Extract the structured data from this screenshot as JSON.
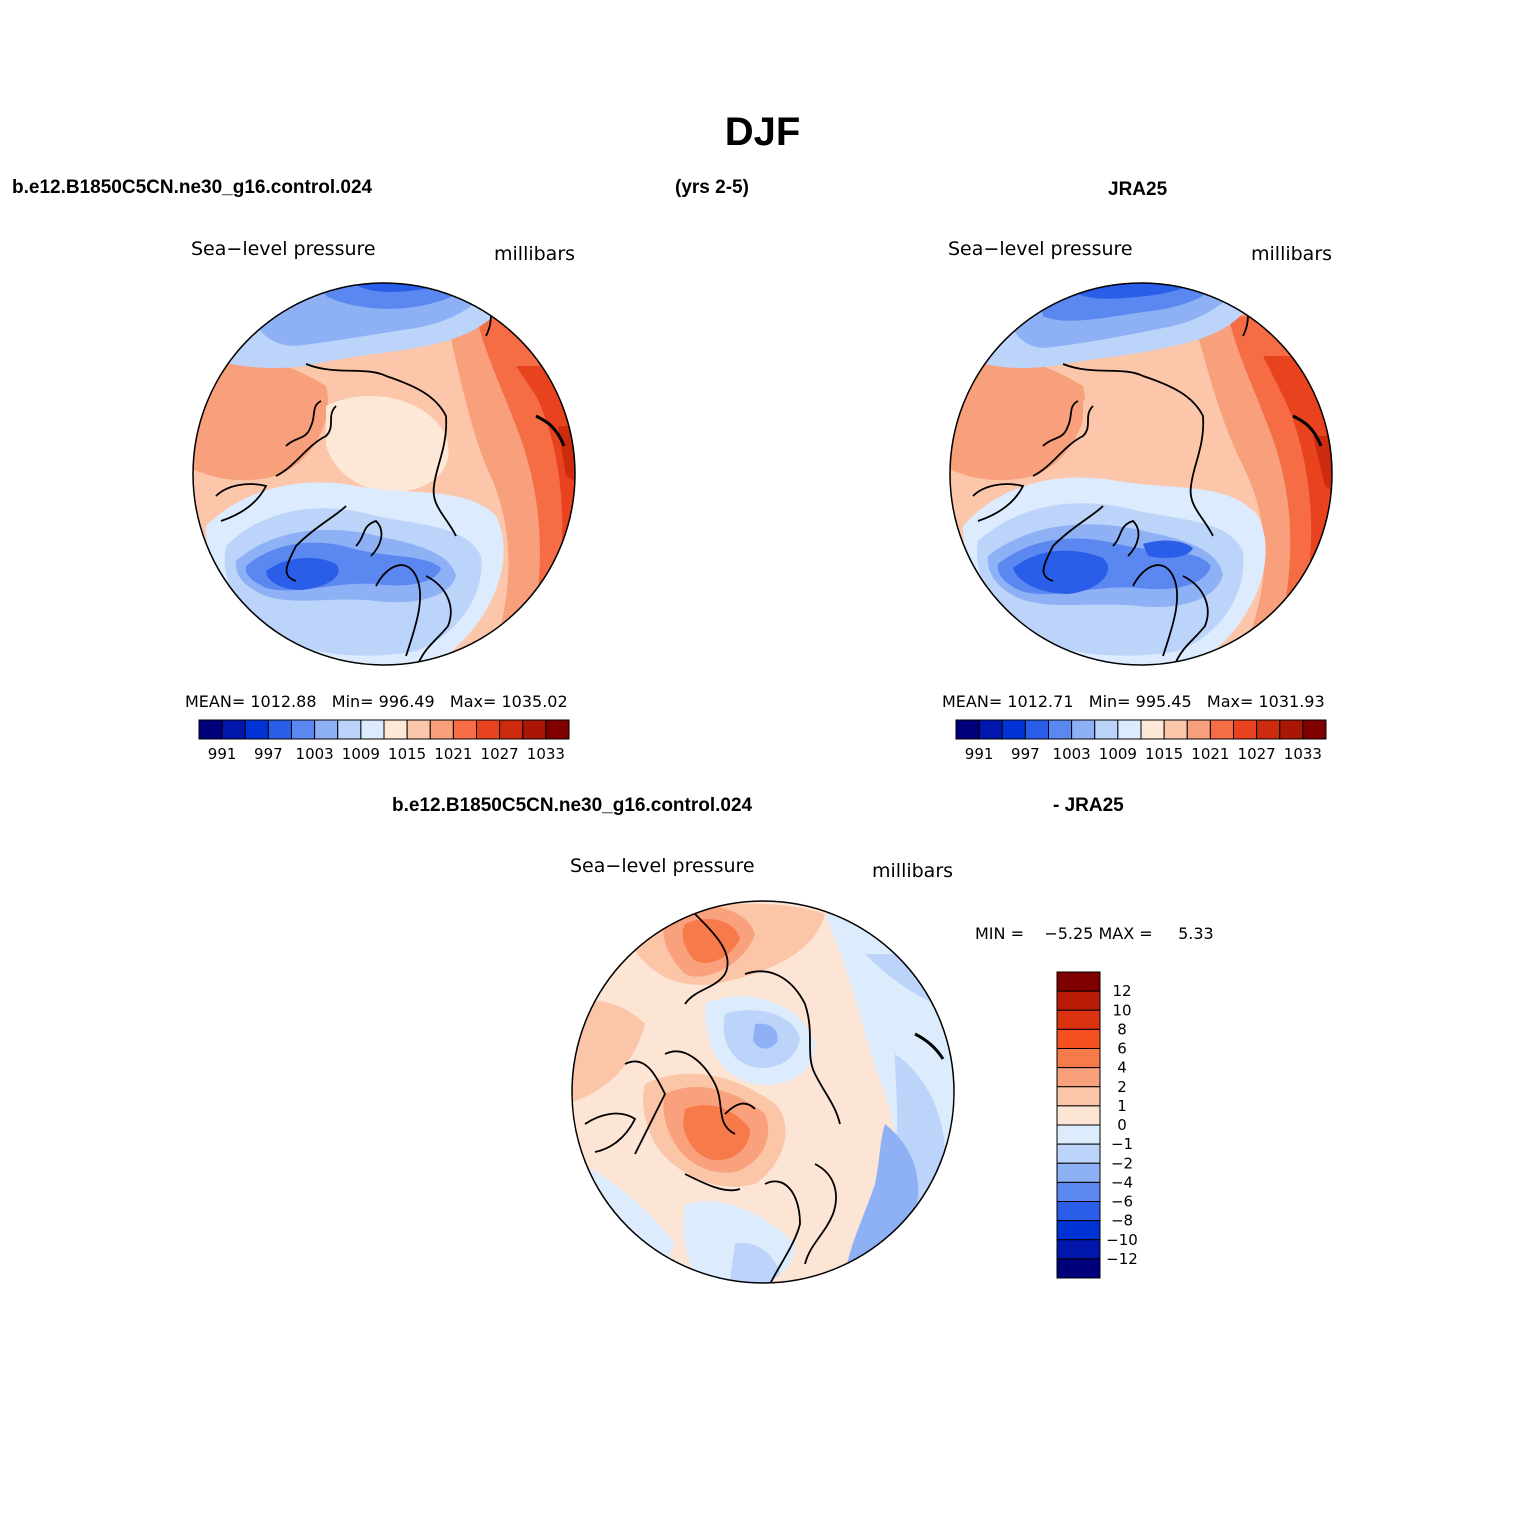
{
  "page": {
    "title": "DJF",
    "case_name": "b.e12.B1850C5CN.ne30_g16.control.024",
    "years": "(yrs 2-5)",
    "obs_name": "JRA25",
    "diff_case_name": "b.e12.B1850C5CN.ne30_g16.control.024",
    "diff_obs_name": "- JRA25"
  },
  "panels": {
    "model": {
      "variable": "Sea−level pressure",
      "units": "millibars",
      "stats": {
        "mean_label": "MEAN=",
        "mean": "1012.88",
        "min_label": "Min=",
        "min": "996.49",
        "max_label": "Max=",
        "max": "1035.02"
      }
    },
    "obs": {
      "variable": "Sea−level pressure",
      "units": "millibars",
      "stats": {
        "mean_label": "MEAN=",
        "mean": "1012.71",
        "min_label": "Min=",
        "min": "995.45",
        "max_label": "Max=",
        "max": "1031.93"
      }
    },
    "diff": {
      "variable": "Sea−level pressure",
      "units": "millibars",
      "stats": {
        "min_label": "MIN =",
        "min": "−5.25",
        "max_label": "MAX =",
        "max": "5.33"
      }
    }
  },
  "colorbars": {
    "abs": {
      "labels": [
        "991",
        "997",
        "1003",
        "1009",
        "1015",
        "1021",
        "1027",
        "1033"
      ],
      "colors": [
        "#00007a",
        "#0016ad",
        "#0033d6",
        "#2a5ee8",
        "#5a88f0",
        "#8eb0f5",
        "#bcd3fa",
        "#dcebfd",
        "#fde8d8",
        "#fbc6aa",
        "#f89f7c",
        "#f56c45",
        "#e8431e",
        "#cc2b0e",
        "#a91606",
        "#800000"
      ]
    },
    "diff": {
      "labels": [
        "12",
        "10",
        "8",
        "6",
        "4",
        "2",
        "1",
        "0",
        "−1",
        "−2",
        "−4",
        "−6",
        "−8",
        "−10",
        "−12"
      ],
      "colors": [
        "#800000",
        "#b81c06",
        "#db3210",
        "#f5501f",
        "#f77a4a",
        "#f9a07c",
        "#fbc5a8",
        "#fde5d6",
        "#ddecfd",
        "#bcd3fa",
        "#8eb0f5",
        "#5a88f0",
        "#2a5ee8",
        "#0033d6",
        "#0016ad",
        "#00007a"
      ]
    }
  },
  "map_palette": {
    "low": "#1b4fe8",
    "mid_low": "#86aaf3",
    "near_zero_low": "#d9e9fd",
    "near_zero_high": "#fde3d1",
    "mid_high": "#f7a07f",
    "high": "#e34016",
    "extreme": "#b91c06"
  }
}
